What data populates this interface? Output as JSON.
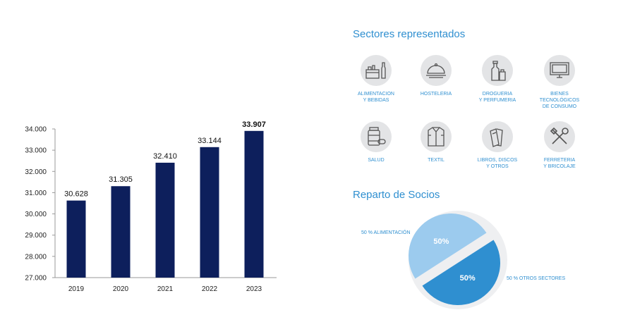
{
  "chart_data": [
    {
      "type": "bar",
      "categories": [
        "2019",
        "2020",
        "2021",
        "2022",
        "2023"
      ],
      "values": [
        30628,
        31305,
        32410,
        33144,
        33907
      ],
      "value_labels": [
        "30.628",
        "31.305",
        "32.410",
        "33.144",
        "33.907"
      ],
      "yticks": [
        "27.000",
        "28.000",
        "29.000",
        "30.000",
        "31.000",
        "32.000",
        "33.000",
        "34.000"
      ],
      "ylim": [
        27000,
        34000
      ],
      "grid": false,
      "bar_color": "#0d1f5c"
    },
    {
      "type": "pie",
      "title": "Reparto de Socios",
      "slices": [
        {
          "name": "50 % ALIMENTACIÓN",
          "value": 50,
          "label": "50%",
          "color": "#9ccbee"
        },
        {
          "name": "50 % OTROS SECTORES",
          "value": 50,
          "label": "50%",
          "color": "#2f8fd0"
        }
      ]
    }
  ],
  "sectores": {
    "title": "Sectores representados",
    "items": [
      {
        "label": "ALIMENTACION\nY BEBIDAS",
        "icon": "food-drinks-icon"
      },
      {
        "label": "HOSTELERIA",
        "icon": "cloche-icon"
      },
      {
        "label": "DROGUERIA\nY PERFUMERIA",
        "icon": "bottles-icon"
      },
      {
        "label": "BIENES\nTECNOLÓGICOS\nDE CONSUMO",
        "icon": "tv-icon"
      },
      {
        "label": "SALUD",
        "icon": "pill-bottle-icon"
      },
      {
        "label": "TEXTIL",
        "icon": "shirt-icon"
      },
      {
        "label": "LIBROS, DISCOS\nY OTROS",
        "icon": "books-icon"
      },
      {
        "label": "FERRETERIA\nY BRICOLAJE",
        "icon": "tools-icon"
      }
    ]
  },
  "colors": {
    "accent": "#2f8fd0",
    "bar": "#0d1f5c",
    "icon_bg": "#e3e4e6"
  }
}
